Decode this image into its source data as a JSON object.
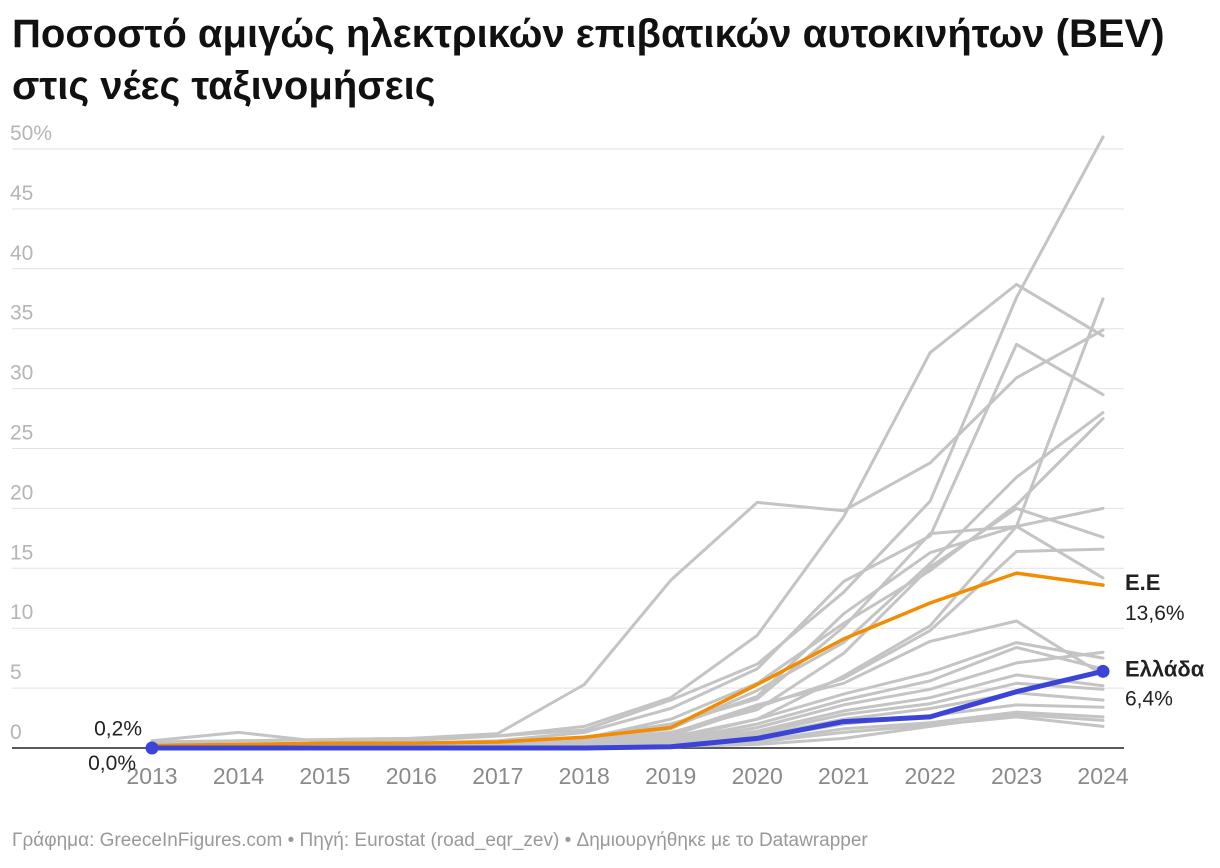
{
  "title": "Ποσοστό αμιγώς ηλεκτρικών επιβατικών αυτοκινήτων (BEV) στις νέες ταξινομήσεις",
  "footer": "Γράφημα: GreeceInFigures.com • Πηγή: Eurostat (road_eqr_zev) • Δημιουργήθηκε με το Datawrapper",
  "colors": {
    "background": "#gray",
    "eu": "#f28c00",
    "greece": "#3c44d8"
  },
  "chart_data": {
    "type": "line",
    "x": [
      2013,
      2014,
      2015,
      2016,
      2017,
      2018,
      2019,
      2020,
      2021,
      2022,
      2023,
      2024
    ],
    "ylim": [
      0,
      50
    ],
    "yticks": [
      "50%",
      "45",
      "40",
      "35",
      "30",
      "25",
      "20",
      "15",
      "10",
      "5",
      "0"
    ],
    "ytick_values": [
      50,
      45,
      40,
      35,
      30,
      25,
      20,
      15,
      10,
      5,
      0
    ],
    "xticks": [
      "2013",
      "2014",
      "2015",
      "2016",
      "2017",
      "2018",
      "2019",
      "2020",
      "2021",
      "2022",
      "2023",
      "2024"
    ],
    "grid": true,
    "highlighted": [
      {
        "name": "Ε.Ε",
        "color": "#f28c00",
        "values": [
          0.2,
          0.3,
          0.4,
          0.4,
          0.5,
          0.9,
          1.7,
          5.3,
          9.1,
          12.1,
          14.6,
          13.6
        ],
        "end_label": "13,6%",
        "start_label": "0,2%"
      },
      {
        "name": "Ελλάδα",
        "color": "#3c44d8",
        "values": [
          0.0,
          0.0,
          0.0,
          0.0,
          0.0,
          0.0,
          0.1,
          0.8,
          2.2,
          2.6,
          4.7,
          6.4
        ],
        "end_label": "6,4%",
        "start_label": "0,0%"
      }
    ],
    "background_series": [
      {
        "values": [
          0.5,
          0.6,
          0.7,
          0.8,
          1.0,
          1.5,
          4.0,
          7.0,
          13.0,
          20.6,
          37.6,
          51.0
        ]
      },
      {
        "values": [
          0.3,
          0.6,
          0.7,
          0.8,
          1.2,
          5.3,
          14.0,
          20.5,
          19.8,
          23.8,
          30.9,
          34.9
        ]
      },
      {
        "values": [
          0.6,
          1.3,
          0.5,
          0.6,
          1.0,
          1.8,
          4.2,
          9.4,
          19.3,
          33.0,
          38.7,
          34.4
        ]
      },
      {
        "values": [
          0.2,
          0.3,
          0.3,
          0.4,
          0.6,
          1.3,
          3.3,
          6.6,
          13.9,
          17.7,
          33.7,
          29.5
        ]
      },
      {
        "values": [
          0.1,
          0.2,
          0.3,
          0.3,
          0.4,
          0.9,
          2.0,
          4.1,
          10.1,
          17.9,
          18.5,
          37.5
        ]
      },
      {
        "values": [
          0.1,
          0.1,
          0.2,
          0.3,
          0.4,
          0.8,
          2.4,
          5.4,
          10.4,
          14.8,
          20.3,
          27.5
        ]
      },
      {
        "values": [
          0.1,
          0.1,
          0.2,
          0.2,
          0.3,
          0.7,
          1.6,
          4.8,
          8.8,
          15.4,
          22.6,
          28.0
        ]
      },
      {
        "values": [
          0.1,
          0.1,
          0.2,
          0.2,
          0.3,
          0.6,
          1.3,
          3.2,
          7.9,
          15.1,
          20.0,
          17.6
        ]
      },
      {
        "values": [
          0.2,
          0.2,
          0.2,
          0.3,
          0.4,
          0.7,
          1.8,
          4.3,
          11.2,
          16.3,
          18.5,
          20.0
        ]
      },
      {
        "values": [
          0.0,
          0.1,
          0.1,
          0.2,
          0.3,
          0.6,
          1.0,
          3.4,
          5.8,
          9.8,
          16.4,
          16.6
        ]
      },
      {
        "values": [
          0.0,
          0.0,
          0.1,
          0.1,
          0.2,
          0.4,
          0.9,
          2.4,
          6.0,
          10.2,
          18.5,
          14.2
        ]
      },
      {
        "values": [
          0.0,
          0.1,
          0.1,
          0.1,
          0.2,
          0.4,
          1.2,
          3.6,
          5.4,
          8.9,
          10.6,
          6.1
        ]
      },
      {
        "values": [
          0.0,
          0.0,
          0.0,
          0.1,
          0.1,
          0.3,
          0.7,
          2.4,
          4.5,
          6.3,
          8.8,
          7.5
        ]
      },
      {
        "values": [
          0.0,
          0.0,
          0.0,
          0.1,
          0.1,
          0.2,
          0.6,
          2.0,
          4.0,
          5.6,
          8.4,
          6.6
        ]
      },
      {
        "values": [
          0.0,
          0.0,
          0.0,
          0.0,
          0.1,
          0.2,
          0.5,
          1.7,
          3.6,
          4.9,
          7.1,
          8.0
        ]
      },
      {
        "values": [
          0.0,
          0.0,
          0.0,
          0.0,
          0.1,
          0.2,
          0.5,
          1.4,
          3.1,
          4.2,
          6.1,
          5.2
        ]
      },
      {
        "values": [
          0.0,
          0.0,
          0.0,
          0.0,
          0.1,
          0.1,
          0.4,
          1.2,
          2.8,
          3.7,
          5.4,
          4.9
        ]
      },
      {
        "values": [
          0.0,
          0.0,
          0.0,
          0.0,
          0.0,
          0.1,
          0.3,
          1.0,
          2.4,
          3.3,
          4.6,
          4.0
        ]
      },
      {
        "values": [
          0.0,
          0.0,
          0.0,
          0.0,
          0.0,
          0.1,
          0.3,
          0.8,
          2.0,
          2.7,
          3.6,
          3.4
        ]
      },
      {
        "values": [
          0.0,
          0.0,
          0.0,
          0.0,
          0.0,
          0.1,
          0.2,
          0.6,
          1.6,
          2.1,
          3.0,
          2.6
        ]
      },
      {
        "values": [
          0.0,
          0.0,
          0.0,
          0.0,
          0.0,
          0.0,
          0.2,
          0.5,
          1.3,
          1.9,
          2.6,
          1.8
        ]
      },
      {
        "values": [
          0.0,
          0.0,
          0.0,
          0.0,
          0.0,
          0.0,
          0.1,
          0.3,
          0.8,
          1.8,
          2.8,
          2.3
        ]
      }
    ]
  }
}
